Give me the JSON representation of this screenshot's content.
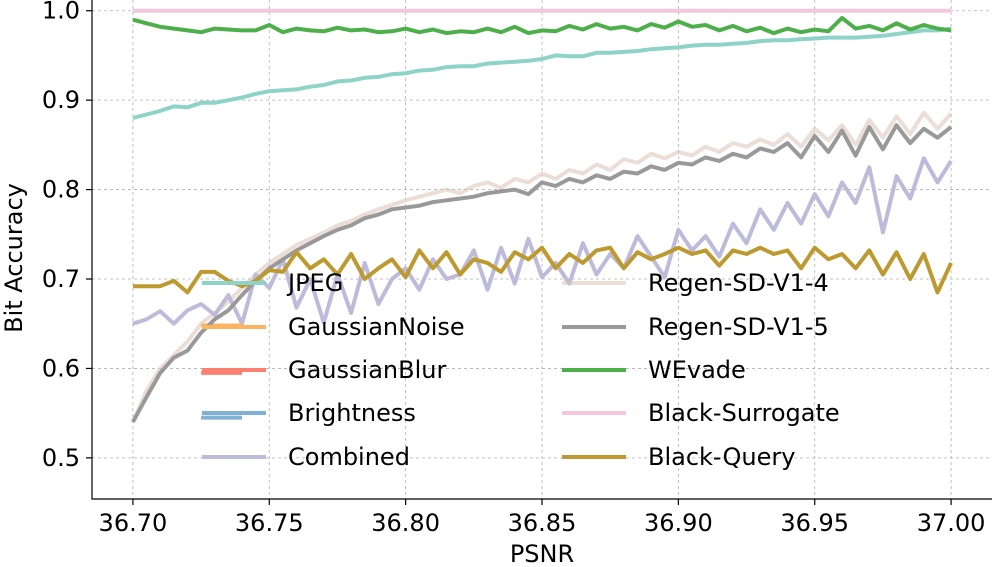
{
  "chart_data": {
    "type": "line",
    "title": "",
    "xlabel": "PSNR",
    "ylabel": "Bit Accuracy",
    "xlim": [
      36.685,
      37.015
    ],
    "ylim": [
      0.454,
      1.012
    ],
    "grid": true,
    "legend": {
      "position": "center",
      "columns": 2
    },
    "x_ticks": [
      36.7,
      36.75,
      36.8,
      36.85,
      36.9,
      36.95,
      37.0
    ],
    "x_tick_labels": [
      "36.70",
      "36.75",
      "36.80",
      "36.85",
      "36.90",
      "36.95",
      "37.00"
    ],
    "y_ticks": [
      0.5,
      0.6,
      0.7,
      0.8,
      0.9,
      1.0
    ],
    "y_tick_labels": [
      "0.5",
      "0.6",
      "0.7",
      "0.8",
      "0.9",
      "1.0"
    ],
    "series": [
      {
        "name": "JPEG",
        "color": "#8dd3c7",
        "opacity": 1,
        "x": [
          36.7,
          36.705,
          36.71,
          36.715,
          36.72,
          36.725,
          36.73,
          36.735,
          36.74,
          36.745,
          36.75,
          36.755,
          36.76,
          36.765,
          36.77,
          36.775,
          36.78,
          36.785,
          36.79,
          36.795,
          36.8,
          36.805,
          36.81,
          36.815,
          36.82,
          36.825,
          36.83,
          36.835,
          36.84,
          36.845,
          36.85,
          36.855,
          36.86,
          36.865,
          36.87,
          36.875,
          36.88,
          36.885,
          36.89,
          36.895,
          36.9,
          36.905,
          36.91,
          36.915,
          36.92,
          36.925,
          36.93,
          36.935,
          36.94,
          36.945,
          36.95,
          36.955,
          36.96,
          36.965,
          36.97,
          36.975,
          36.98,
          36.985,
          36.99,
          36.995,
          37.0
        ],
        "values": [
          0.88,
          0.884,
          0.888,
          0.893,
          0.892,
          0.897,
          0.897,
          0.9,
          0.903,
          0.907,
          0.91,
          0.911,
          0.912,
          0.915,
          0.917,
          0.921,
          0.922,
          0.925,
          0.926,
          0.929,
          0.93,
          0.933,
          0.934,
          0.937,
          0.938,
          0.938,
          0.941,
          0.942,
          0.943,
          0.944,
          0.946,
          0.95,
          0.949,
          0.949,
          0.953,
          0.953,
          0.954,
          0.955,
          0.957,
          0.958,
          0.959,
          0.961,
          0.962,
          0.962,
          0.963,
          0.964,
          0.966,
          0.967,
          0.967,
          0.968,
          0.969,
          0.97,
          0.97,
          0.97,
          0.971,
          0.972,
          0.974,
          0.976,
          0.978,
          0.978,
          0.98
        ]
      },
      {
        "name": "GaussianNoise",
        "color": "#fdb462",
        "opacity": 1,
        "x": [
          36.725,
          36.74
        ],
        "values": [
          0.648,
          0.648
        ]
      },
      {
        "name": "GaussianBlur",
        "color": "#fb8072",
        "opacity": 1,
        "x": [
          36.725,
          36.74
        ],
        "values": [
          0.595,
          0.595
        ]
      },
      {
        "name": "Brightness",
        "color": "#80b1d3",
        "opacity": 1,
        "x": [
          36.725,
          36.74
        ],
        "values": [
          0.545,
          0.545
        ]
      },
      {
        "name": "Combined",
        "color": "#bebada",
        "opacity": 1,
        "x": [
          36.7,
          36.705,
          36.71,
          36.715,
          36.72,
          36.725,
          36.73,
          36.735,
          36.74,
          36.745,
          36.75,
          36.755,
          36.76,
          36.765,
          36.77,
          36.775,
          36.78,
          36.785,
          36.79,
          36.795,
          36.8,
          36.805,
          36.81,
          36.815,
          36.82,
          36.825,
          36.83,
          36.835,
          36.84,
          36.845,
          36.85,
          36.855,
          36.86,
          36.865,
          36.87,
          36.875,
          36.88,
          36.885,
          36.89,
          36.895,
          36.9,
          36.905,
          36.91,
          36.915,
          36.92,
          36.925,
          36.93,
          36.935,
          36.94,
          36.945,
          36.95,
          36.955,
          36.96,
          36.965,
          36.97,
          36.975,
          36.98,
          36.985,
          36.99,
          36.995,
          37.0
        ],
        "values": [
          0.65,
          0.655,
          0.664,
          0.65,
          0.665,
          0.672,
          0.66,
          0.682,
          0.65,
          0.705,
          0.69,
          0.722,
          0.668,
          0.7,
          0.651,
          0.705,
          0.662,
          0.718,
          0.672,
          0.7,
          0.712,
          0.688,
          0.722,
          0.7,
          0.705,
          0.732,
          0.688,
          0.735,
          0.695,
          0.745,
          0.702,
          0.718,
          0.695,
          0.74,
          0.705,
          0.728,
          0.712,
          0.748,
          0.725,
          0.702,
          0.755,
          0.732,
          0.748,
          0.725,
          0.762,
          0.74,
          0.778,
          0.755,
          0.785,
          0.762,
          0.795,
          0.77,
          0.808,
          0.785,
          0.825,
          0.752,
          0.815,
          0.79,
          0.835,
          0.808,
          0.832
        ]
      },
      {
        "name": "Regen-SD-V1-4",
        "color": "#d9c2b4",
        "opacity": 0.55,
        "x": [
          36.7,
          36.705,
          36.71,
          36.715,
          36.72,
          36.725,
          36.73,
          36.735,
          36.74,
          36.745,
          36.75,
          36.755,
          36.76,
          36.765,
          36.77,
          36.775,
          36.78,
          36.785,
          36.79,
          36.795,
          36.8,
          36.805,
          36.81,
          36.815,
          36.82,
          36.825,
          36.83,
          36.835,
          36.84,
          36.845,
          36.85,
          36.855,
          36.86,
          36.865,
          36.87,
          36.875,
          36.88,
          36.885,
          36.89,
          36.895,
          36.9,
          36.905,
          36.91,
          36.915,
          36.92,
          36.925,
          36.93,
          36.935,
          36.94,
          36.945,
          36.95,
          36.955,
          36.96,
          36.965,
          36.97,
          36.975,
          36.98,
          36.985,
          36.99,
          36.995,
          37.0
        ],
        "values": [
          0.54,
          0.575,
          0.6,
          0.615,
          0.63,
          0.65,
          0.662,
          0.675,
          0.69,
          0.705,
          0.718,
          0.728,
          0.738,
          0.745,
          0.752,
          0.76,
          0.765,
          0.772,
          0.778,
          0.783,
          0.788,
          0.792,
          0.796,
          0.8,
          0.796,
          0.804,
          0.808,
          0.802,
          0.812,
          0.808,
          0.818,
          0.812,
          0.822,
          0.818,
          0.828,
          0.822,
          0.834,
          0.83,
          0.84,
          0.835,
          0.842,
          0.838,
          0.848,
          0.842,
          0.852,
          0.848,
          0.856,
          0.85,
          0.862,
          0.848,
          0.868,
          0.855,
          0.872,
          0.85,
          0.878,
          0.858,
          0.882,
          0.862,
          0.886,
          0.868,
          0.885
        ]
      },
      {
        "name": "Regen-SD-V1-5",
        "color": "#999999",
        "opacity": 1,
        "x": [
          36.7,
          36.705,
          36.71,
          36.715,
          36.72,
          36.725,
          36.73,
          36.735,
          36.74,
          36.745,
          36.75,
          36.755,
          36.76,
          36.765,
          36.77,
          36.775,
          36.78,
          36.785,
          36.79,
          36.795,
          36.8,
          36.805,
          36.81,
          36.815,
          36.82,
          36.825,
          36.83,
          36.835,
          36.84,
          36.845,
          36.85,
          36.855,
          36.86,
          36.865,
          36.87,
          36.875,
          36.88,
          36.885,
          36.89,
          36.895,
          36.9,
          36.905,
          36.91,
          36.915,
          36.92,
          36.925,
          36.93,
          36.935,
          36.94,
          36.945,
          36.95,
          36.955,
          36.96,
          36.965,
          36.97,
          36.975,
          36.98,
          36.985,
          36.99,
          36.995,
          37.0
        ],
        "values": [
          0.54,
          0.568,
          0.595,
          0.612,
          0.62,
          0.64,
          0.655,
          0.665,
          0.682,
          0.698,
          0.712,
          0.722,
          0.732,
          0.74,
          0.748,
          0.755,
          0.76,
          0.768,
          0.772,
          0.778,
          0.78,
          0.782,
          0.786,
          0.788,
          0.79,
          0.792,
          0.796,
          0.798,
          0.8,
          0.795,
          0.808,
          0.804,
          0.812,
          0.808,
          0.816,
          0.812,
          0.82,
          0.818,
          0.826,
          0.822,
          0.83,
          0.828,
          0.836,
          0.832,
          0.84,
          0.836,
          0.846,
          0.842,
          0.852,
          0.836,
          0.86,
          0.842,
          0.866,
          0.838,
          0.87,
          0.845,
          0.872,
          0.852,
          0.868,
          0.858,
          0.87
        ]
      },
      {
        "name": "WEvade",
        "color": "#4daf4a",
        "opacity": 1,
        "x": [
          36.7,
          36.705,
          36.71,
          36.715,
          36.72,
          36.725,
          36.73,
          36.735,
          36.74,
          36.745,
          36.75,
          36.755,
          36.76,
          36.765,
          36.77,
          36.775,
          36.78,
          36.785,
          36.79,
          36.795,
          36.8,
          36.805,
          36.81,
          36.815,
          36.82,
          36.825,
          36.83,
          36.835,
          36.84,
          36.845,
          36.85,
          36.855,
          36.86,
          36.865,
          36.87,
          36.875,
          36.88,
          36.885,
          36.89,
          36.895,
          36.9,
          36.905,
          36.91,
          36.915,
          36.92,
          36.925,
          36.93,
          36.935,
          36.94,
          36.945,
          36.95,
          36.955,
          36.96,
          36.965,
          36.97,
          36.975,
          36.98,
          36.985,
          36.99,
          36.995,
          37.0
        ],
        "values": [
          0.99,
          0.986,
          0.982,
          0.98,
          0.978,
          0.976,
          0.98,
          0.979,
          0.978,
          0.978,
          0.984,
          0.976,
          0.98,
          0.978,
          0.977,
          0.981,
          0.978,
          0.979,
          0.976,
          0.977,
          0.98,
          0.976,
          0.979,
          0.975,
          0.977,
          0.976,
          0.98,
          0.976,
          0.982,
          0.975,
          0.978,
          0.977,
          0.983,
          0.979,
          0.985,
          0.98,
          0.982,
          0.978,
          0.985,
          0.981,
          0.988,
          0.982,
          0.984,
          0.978,
          0.983,
          0.977,
          0.981,
          0.975,
          0.98,
          0.976,
          0.979,
          0.977,
          0.992,
          0.98,
          0.983,
          0.978,
          0.986,
          0.979,
          0.984,
          0.98,
          0.978
        ]
      },
      {
        "name": "Black-Surrogate",
        "color": "#f4c6e0",
        "opacity": 1,
        "x": [
          36.7,
          37.0
        ],
        "values": [
          1.0,
          1.0
        ]
      },
      {
        "name": "Black-Query",
        "color": "#bd9a2f",
        "opacity": 1,
        "x": [
          36.7,
          36.705,
          36.71,
          36.715,
          36.72,
          36.725,
          36.73,
          36.735,
          36.74,
          36.745,
          36.75,
          36.755,
          36.76,
          36.765,
          36.77,
          36.775,
          36.78,
          36.785,
          36.79,
          36.795,
          36.8,
          36.805,
          36.81,
          36.815,
          36.82,
          36.825,
          36.83,
          36.835,
          36.84,
          36.845,
          36.85,
          36.855,
          36.86,
          36.865,
          36.87,
          36.875,
          36.88,
          36.885,
          36.89,
          36.895,
          36.9,
          36.905,
          36.91,
          36.915,
          36.92,
          36.925,
          36.93,
          36.935,
          36.94,
          36.945,
          36.95,
          36.955,
          36.96,
          36.965,
          36.97,
          36.975,
          36.98,
          36.985,
          36.99,
          36.995,
          37.0
        ],
        "values": [
          0.692,
          0.692,
          0.692,
          0.698,
          0.685,
          0.708,
          0.708,
          0.698,
          0.692,
          0.698,
          0.71,
          0.708,
          0.73,
          0.712,
          0.722,
          0.705,
          0.728,
          0.7,
          0.712,
          0.722,
          0.702,
          0.732,
          0.712,
          0.73,
          0.705,
          0.722,
          0.718,
          0.708,
          0.73,
          0.722,
          0.735,
          0.712,
          0.728,
          0.718,
          0.732,
          0.735,
          0.712,
          0.73,
          0.722,
          0.728,
          0.735,
          0.728,
          0.732,
          0.715,
          0.732,
          0.728,
          0.735,
          0.728,
          0.732,
          0.712,
          0.735,
          0.722,
          0.728,
          0.712,
          0.732,
          0.705,
          0.73,
          0.7,
          0.728,
          0.685,
          0.718
        ]
      }
    ]
  }
}
